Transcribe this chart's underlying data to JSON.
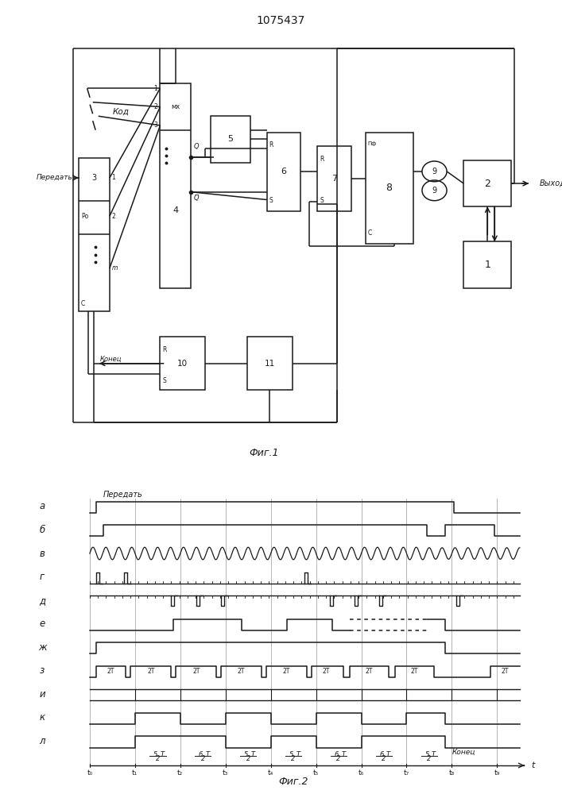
{
  "title": "1075437",
  "fig1_label": "Фиг.1",
  "fig2_label": "Фиг.2",
  "lc": "#1a1a1a",
  "timing_rows": [
    "а",
    "б",
    "в",
    "г",
    "д",
    "е",
    "ж",
    "з",
    "и",
    "к",
    "л"
  ],
  "t_labels": [
    "t₀",
    "t₁",
    "t₂",
    "t₃",
    "t₄",
    "t₅",
    "t₆",
    "t₇",
    "t₈",
    "t₉"
  ]
}
